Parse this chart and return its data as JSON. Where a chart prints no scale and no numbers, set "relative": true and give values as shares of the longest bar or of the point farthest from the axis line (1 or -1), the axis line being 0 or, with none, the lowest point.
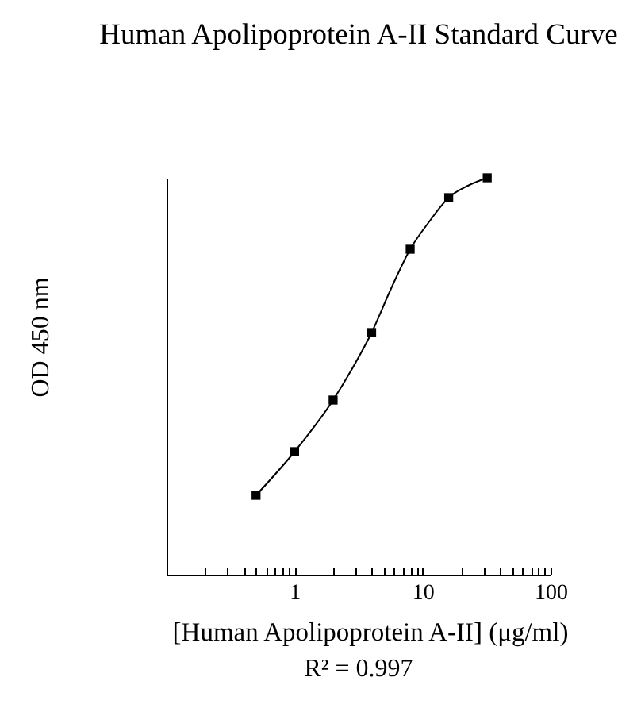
{
  "chart_data": {
    "type": "scatter",
    "title": "Human Apolipoprotein A-II Standard Curve",
    "xlabel": "[Human Apolipoprotein A-II] (μg/ml)",
    "ylabel": "OD 450 nm",
    "annotations": [
      "R² = 0.997"
    ],
    "log": "x",
    "relative": true,
    "marker": "square",
    "xlim": [
      0.1,
      100
    ],
    "xticks": [
      {
        "value": 0.2,
        "label": null
      },
      {
        "value": 0.3,
        "label": null
      },
      {
        "value": 0.4,
        "label": null
      },
      {
        "value": 0.5,
        "label": null
      },
      {
        "value": 0.6,
        "label": null
      },
      {
        "value": 0.7,
        "label": null
      },
      {
        "value": 0.8,
        "label": null
      },
      {
        "value": 0.9,
        "label": null
      },
      1,
      {
        "value": 2,
        "label": null
      },
      {
        "value": 3,
        "label": null
      },
      {
        "value": 4,
        "label": null
      },
      {
        "value": 5,
        "label": null
      },
      {
        "value": 6,
        "label": null
      },
      {
        "value": 7,
        "label": null
      },
      {
        "value": 8,
        "label": null
      },
      {
        "value": 9,
        "label": null
      },
      10,
      {
        "value": 20,
        "label": null
      },
      {
        "value": 30,
        "label": null
      },
      {
        "value": 40,
        "label": null
      },
      {
        "value": 50,
        "label": null
      },
      {
        "value": 60,
        "label": null
      },
      {
        "value": 70,
        "label": null
      },
      {
        "value": 80,
        "label": null
      },
      {
        "value": 90,
        "label": null
      },
      100
    ],
    "series": [
      {
        "type": "line",
        "color": "#000000",
        "marker": "none",
        "line_style": "solid",
        "x": [
          0.5,
          1,
          2,
          2.83,
          4,
          5.66,
          8,
          11.3,
          16,
          22.6,
          32
        ],
        "values": [
          0.2,
          0.31,
          0.44,
          0.52,
          0.61,
          0.72,
          0.82,
          0.89,
          0.95,
          0.98,
          1
        ]
      },
      {
        "type": "scatter",
        "color": "#000000",
        "x": [
          0.5,
          1,
          2,
          4,
          8,
          16,
          32
        ],
        "values": [
          0.2,
          0.31,
          0.44,
          0.61,
          0.82,
          0.95,
          1
        ]
      }
    ]
  }
}
